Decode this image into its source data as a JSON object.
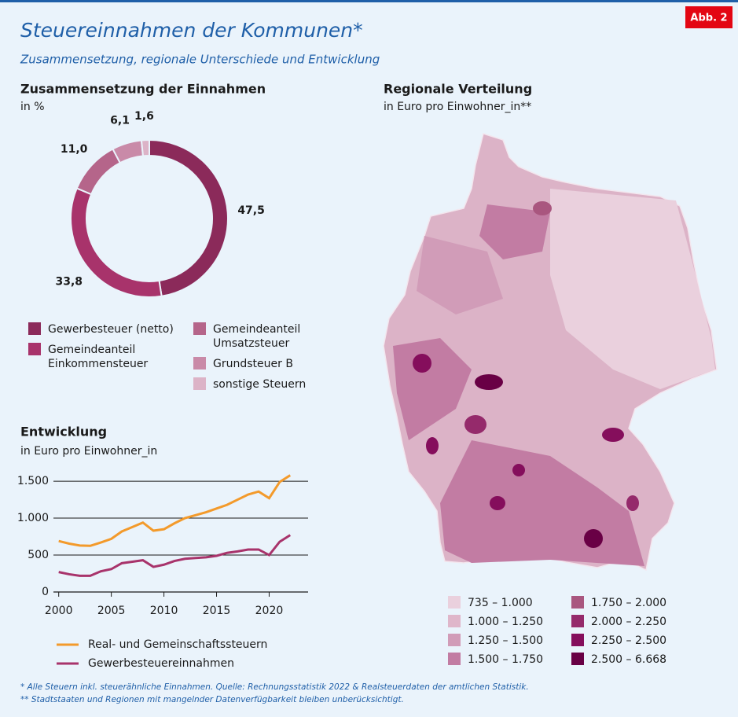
{
  "badge": "Abb. 2",
  "title": "Steuereinnahmen der Kommunen*",
  "subtitle": "Zusammensetzung, regionale Unterschiede und Entwicklung",
  "footnotes": [
    "* Alle Steuern inkl. steuerähnliche Einnahmen. Quelle: Rechnungsstatistik 2022 & Realsteuerdaten der amtlichen Statistik.",
    "** Stadtstaaten und Regionen mit mangelnder Datenverfügbarkeit bleiben unberücksichtigt."
  ],
  "chart_data": [
    {
      "type": "pie",
      "title": "Zusammensetzung der Einnahmen",
      "subtitle": "in %",
      "categories": [
        "Gewerbesteuer (netto)",
        "Gemeindeanteil Einkommensteuer",
        "Gemeindeanteil Umsatzsteuer",
        "Grundsteuer B",
        "sonstige Steuern"
      ],
      "values": [
        47.5,
        33.8,
        11.0,
        6.1,
        1.6
      ],
      "value_labels": [
        "47,5",
        "33,8",
        "11,0",
        "6,1",
        "1,6"
      ],
      "colors": [
        "#8b2a5a",
        "#a8336b",
        "#b5658a",
        "#c98aa8",
        "#dcb3c7"
      ]
    },
    {
      "type": "line",
      "title": "Entwicklung",
      "subtitle": "in Euro pro Einwohner_in",
      "x": [
        2000,
        2001,
        2002,
        2003,
        2004,
        2005,
        2006,
        2007,
        2008,
        2009,
        2010,
        2011,
        2012,
        2013,
        2014,
        2015,
        2016,
        2017,
        2018,
        2019,
        2020,
        2021,
        2022
      ],
      "series": [
        {
          "name": "Real- und Gemeinschaftssteuern",
          "color": "#f39a2b",
          "values": [
            690,
            655,
            630,
            625,
            670,
            720,
            820,
            880,
            940,
            830,
            850,
            930,
            1000,
            1040,
            1080,
            1130,
            1180,
            1250,
            1320,
            1360,
            1270,
            1490,
            1580
          ]
        },
        {
          "name": "Gewerbesteuereinnahmen",
          "color": "#a8336b",
          "values": [
            270,
            240,
            220,
            220,
            280,
            310,
            390,
            410,
            430,
            340,
            370,
            420,
            450,
            460,
            470,
            490,
            530,
            550,
            575,
            575,
            500,
            680,
            770
          ]
        }
      ],
      "xlim": [
        1999.5,
        2023.7
      ],
      "xticks": [
        2000,
        2005,
        2010,
        2015,
        2020
      ],
      "ylim": [
        0,
        1650
      ],
      "yticks": [
        0,
        500,
        {
          "value": 1000,
          "label": "1.000"
        },
        {
          "value": 1500,
          "label": "1.500"
        }
      ],
      "grid": true
    },
    {
      "type": "map",
      "title": "Regionale Verteilung",
      "subtitle": "in Euro pro Einwohner_in**",
      "categories": [
        "735 – 1.000",
        "1.000 – 1.250",
        "1.250 – 1.500",
        "1.500 – 1.750",
        "1.750 – 2.000",
        "2.000 – 2.250",
        "2.250 – 2.500",
        "2.500 – 6.668"
      ],
      "colors": [
        "#ead0dd",
        "#dfb6ca",
        "#d19cb8",
        "#c27ca3",
        "#a9567f",
        "#952a6b",
        "#850e5c",
        "#690045"
      ]
    }
  ]
}
